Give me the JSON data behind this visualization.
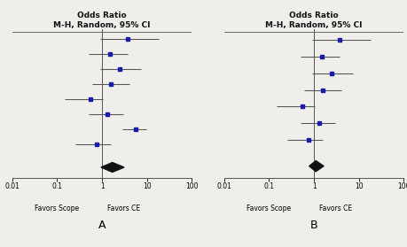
{
  "panel_A": {
    "title_line1": "Odds Ratio",
    "title_line2": "M-H, Random, 95% CI",
    "studies": [
      {
        "or": 3.8,
        "ci_low": 0.9,
        "ci_high": 18.0
      },
      {
        "or": 1.5,
        "ci_low": 0.5,
        "ci_high": 3.8
      },
      {
        "or": 2.5,
        "ci_low": 0.9,
        "ci_high": 7.5
      },
      {
        "or": 1.6,
        "ci_low": 0.6,
        "ci_high": 4.0
      },
      {
        "or": 0.55,
        "ci_low": 0.15,
        "ci_high": 1.05
      },
      {
        "or": 1.3,
        "ci_low": 0.5,
        "ci_high": 3.0
      },
      {
        "or": 5.5,
        "ci_low": 2.8,
        "ci_high": 9.5
      },
      {
        "or": 0.75,
        "ci_low": 0.25,
        "ci_high": 1.6
      }
    ],
    "overall": {
      "or": 1.7,
      "ci_low": 0.95,
      "ci_high": 3.1
    },
    "xlabel_left": "Favors Scope",
    "xlabel_right": "Favors CE",
    "xlim": [
      0.01,
      100
    ],
    "xticks": [
      0.01,
      0.1,
      1,
      10,
      100
    ],
    "label": "A"
  },
  "panel_B": {
    "title_line1": "Odds Ratio",
    "title_line2": "M-H, Random, 95% CI",
    "studies": [
      {
        "or": 3.8,
        "ci_low": 0.9,
        "ci_high": 18.0
      },
      {
        "or": 1.5,
        "ci_low": 0.5,
        "ci_high": 3.8
      },
      {
        "or": 2.5,
        "ci_low": 0.9,
        "ci_high": 7.5
      },
      {
        "or": 1.6,
        "ci_low": 0.6,
        "ci_high": 4.0
      },
      {
        "or": 0.55,
        "ci_low": 0.15,
        "ci_high": 1.05
      },
      {
        "or": 1.3,
        "ci_low": 0.5,
        "ci_high": 3.0
      },
      {
        "or": 0.75,
        "ci_low": 0.25,
        "ci_high": 1.6
      }
    ],
    "overall": {
      "or": 1.1,
      "ci_low": 0.78,
      "ci_high": 1.65
    },
    "xlabel_left": "Favors Scope",
    "xlabel_right": "Favors CE",
    "xlim": [
      0.01,
      100
    ],
    "xticks": [
      0.01,
      0.1,
      1,
      10,
      100
    ],
    "label": "B"
  },
  "dot_color": "#1a1aaa",
  "diamond_color": "#111111",
  "line_color": "#555555",
  "title_color": "#111111",
  "bg_color": "#f0eeea"
}
